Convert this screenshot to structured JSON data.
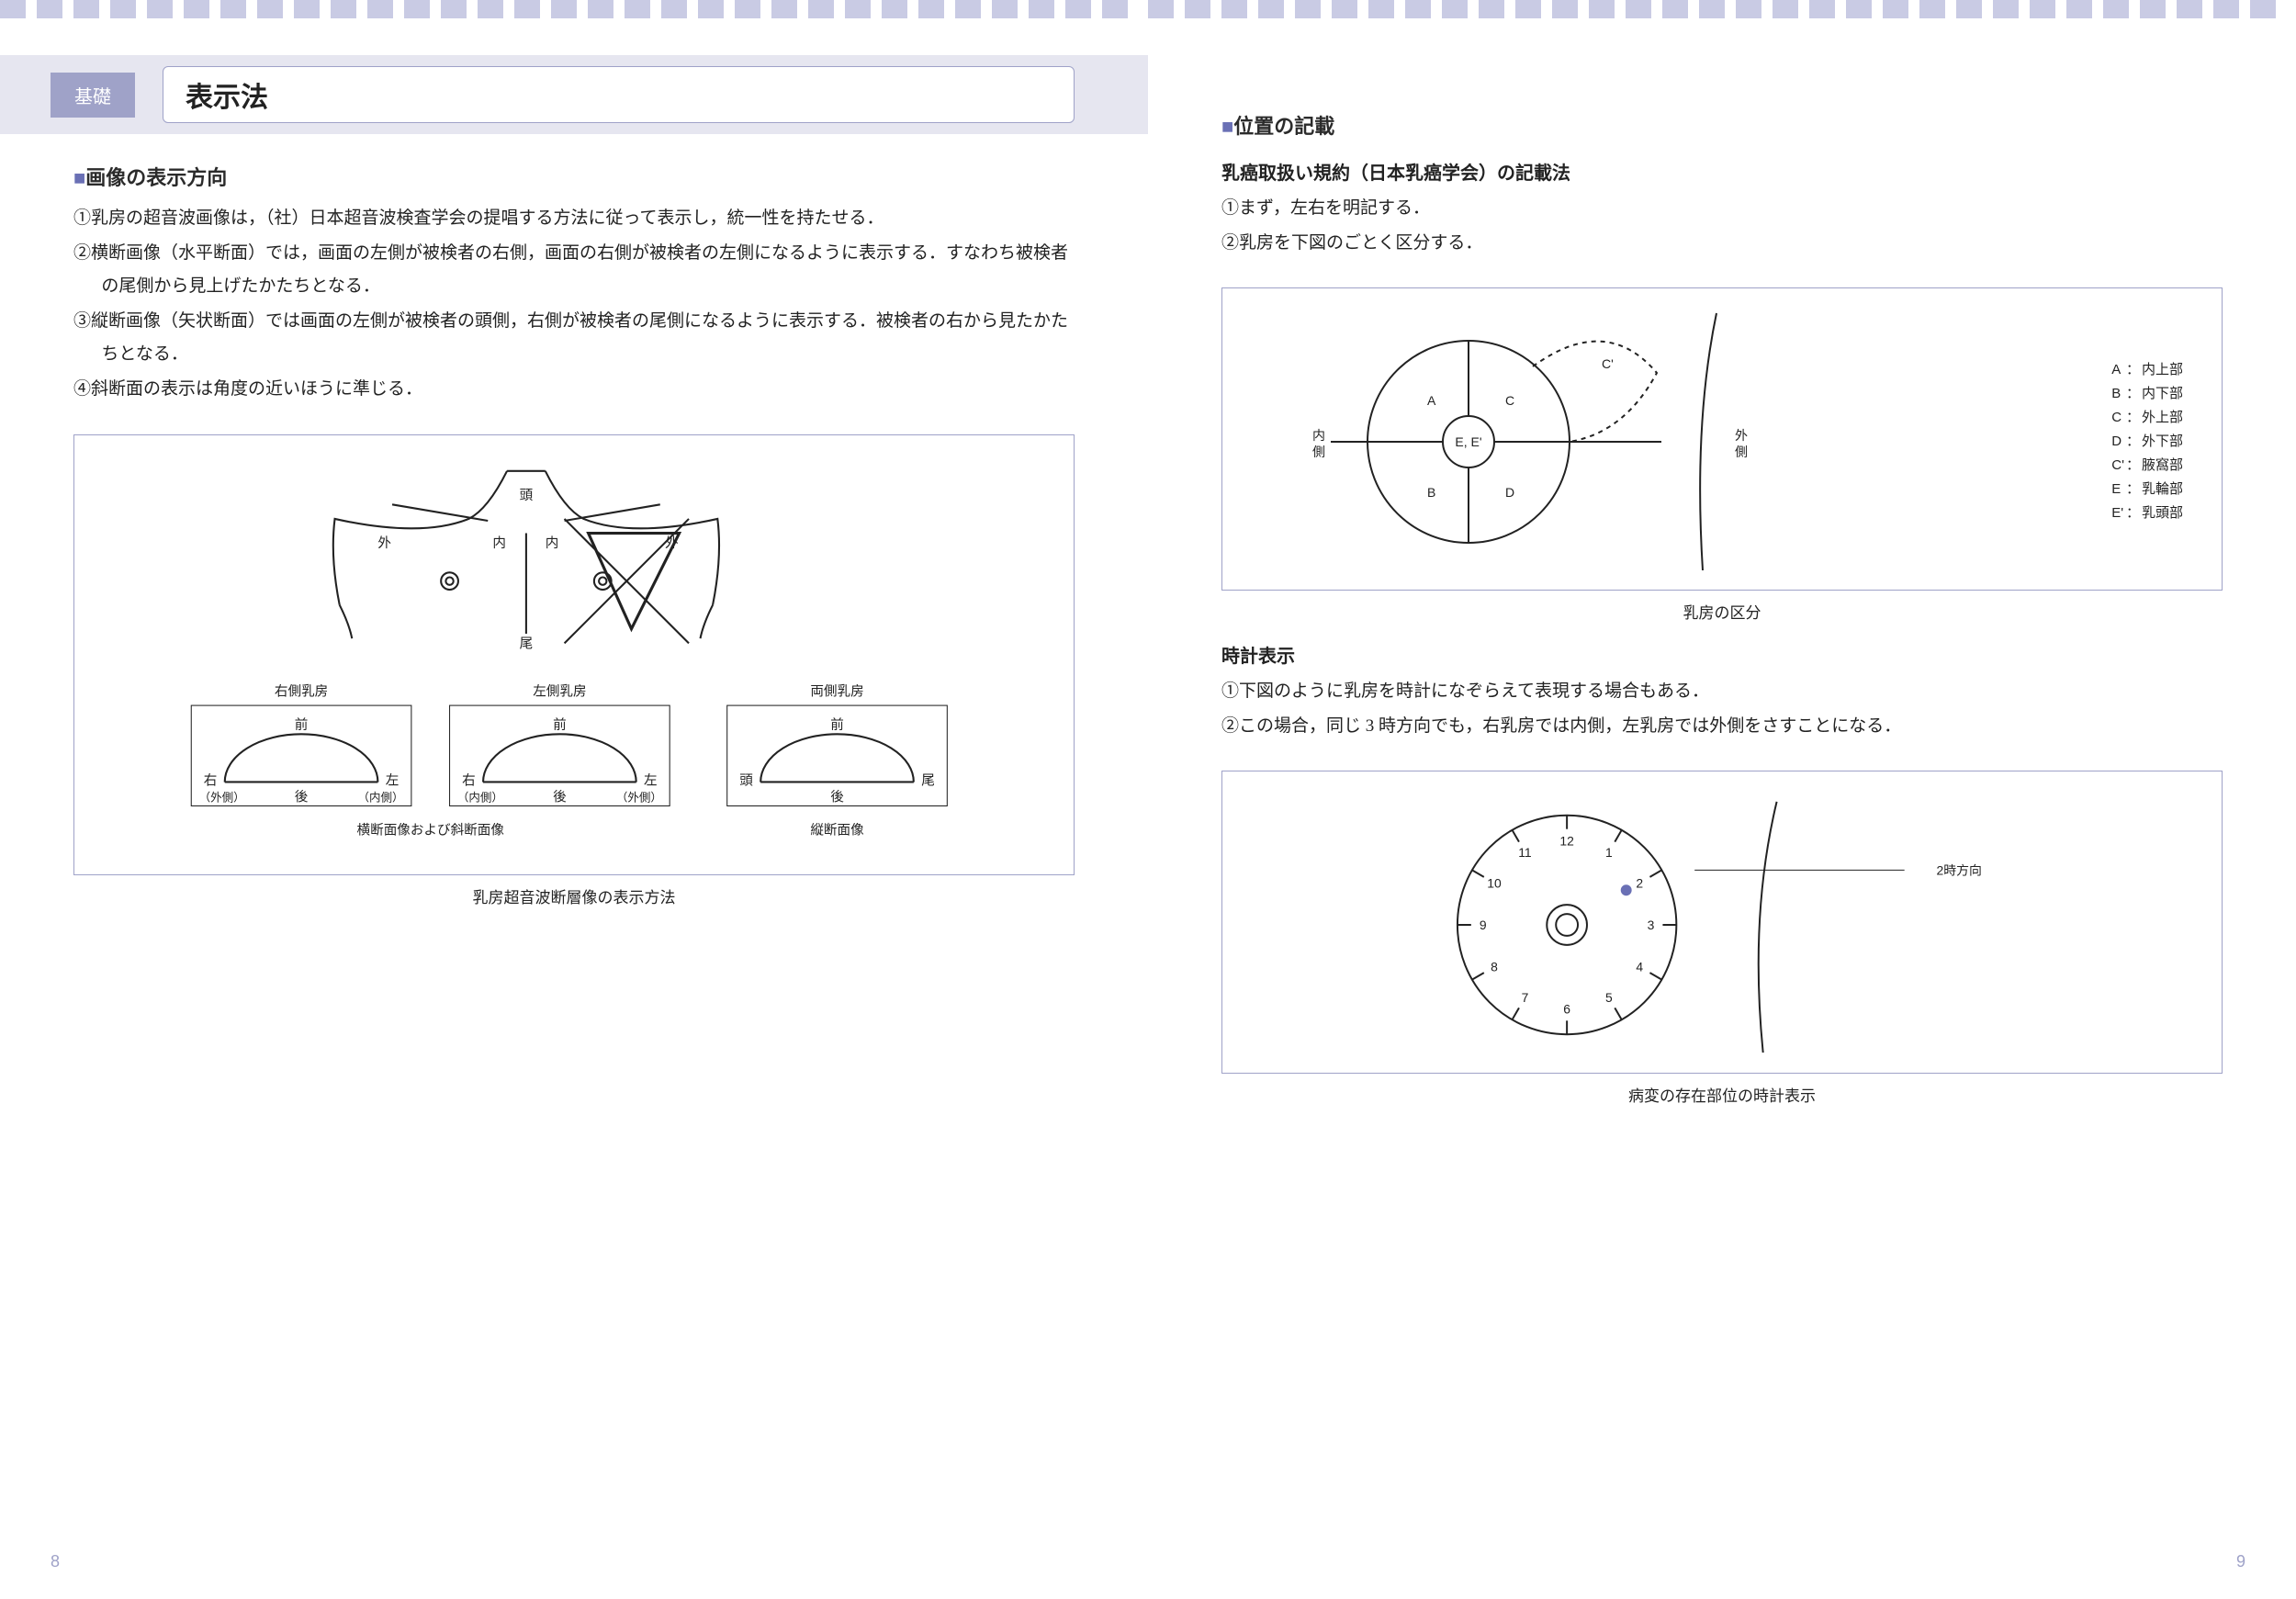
{
  "colors": {
    "accent_bg": "#e6e6f0",
    "accent": "#9fa2c8",
    "accent_dark": "#6a70b5",
    "border": "#9fa2c8",
    "stripe": "#c9cbe4",
    "text": "#222222"
  },
  "left_page": {
    "number": "8",
    "tag": "基礎",
    "title": "表示法",
    "section1": {
      "heading_marker": "■",
      "heading": "画像の表示方向",
      "items": [
        "①乳房の超音波画像は，（社）日本超音波検査学会の提唱する方法に従って表示し，統一性を持たせる．",
        "②横断画像（水平断面）では，画面の左側が被検者の右側，画面の右側が被検者の左側になるように表示する．すなわち被検者の尾側から見上げたかたちとなる．",
        "③縦断画像（矢状断面）では画面の左側が被検者の頭側，右側が被検者の尾側になるように表示する．被検者の右から見たかたちとなる．",
        "④斜断面の表示は角度の近いほうに準じる．"
      ]
    },
    "figure1": {
      "torso_labels": {
        "head": "頭",
        "tail": "尾",
        "outer": "外",
        "inner": "内"
      },
      "groups": [
        {
          "title": "右側乳房",
          "top": "前",
          "bottom": "後",
          "left": "右",
          "right": "左",
          "left_sub": "（外側）",
          "right_sub": "（内側）"
        },
        {
          "title": "左側乳房",
          "top": "前",
          "bottom": "後",
          "left": "右",
          "right": "左",
          "left_sub": "（内側）",
          "right_sub": "（外側）"
        },
        {
          "title": "両側乳房",
          "top": "前",
          "bottom": "後",
          "left": "頭",
          "right": "尾",
          "left_sub": "",
          "right_sub": ""
        }
      ],
      "group12_caption": "横断面像および斜断面像",
      "group3_caption": "縦断面像",
      "caption": "乳房超音波断層像の表示方法"
    }
  },
  "right_page": {
    "number": "9",
    "section1": {
      "heading_marker": "■",
      "heading": "位置の記載",
      "sub": "乳癌取扱い規約（日本乳癌学会）の記載法",
      "items": [
        "①まず，左右を明記する．",
        "②乳房を下図のごとく区分する．"
      ]
    },
    "figure2": {
      "quadrants": {
        "A": "A",
        "B": "B",
        "C": "C",
        "D": "D",
        "E": "E, E'",
        "Cp": "C'"
      },
      "side_labels": {
        "inner": "内\n側",
        "outer": "外\n側"
      },
      "legend": [
        {
          "k": "A",
          "v": "内上部"
        },
        {
          "k": "B",
          "v": "内下部"
        },
        {
          "k": "C",
          "v": "外上部"
        },
        {
          "k": "D",
          "v": "外下部"
        },
        {
          "k": "C'",
          "v": "腋窩部"
        },
        {
          "k": "E",
          "v": "乳輪部"
        },
        {
          "k": "E'",
          "v": "乳頭部"
        }
      ],
      "caption": "乳房の区分"
    },
    "section2": {
      "heading": "時計表示",
      "items": [
        "①下図のように乳房を時計になぞらえて表現する場合もある．",
        "②この場合，同じ 3 時方向でも，右乳房では内側，左乳房では外側をさすことになる．"
      ]
    },
    "figure3": {
      "hours": [
        "12",
        "1",
        "2",
        "3",
        "4",
        "5",
        "6",
        "7",
        "8",
        "9",
        "10",
        "11"
      ],
      "marker_hour": 2,
      "label": "2時方向",
      "caption": "病変の存在部位の時計表示"
    }
  }
}
